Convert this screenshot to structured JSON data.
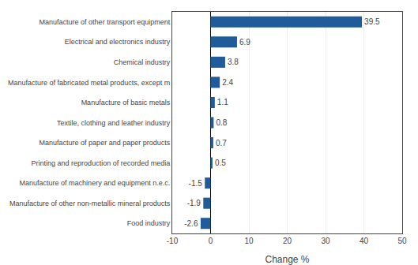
{
  "chart_data": {
    "type": "bar",
    "orientation": "horizontal",
    "categories": [
      "Manufacture of other transport equipment",
      "Electrical and electronics industry",
      "Chemical industry",
      "Manufacture of fabricated metal products, except m",
      "Manufacture of basic metals",
      "Textile, clothing and leather industry",
      "Manufacture of paper and paper products",
      "Printing and reproduction of recorded media",
      "Manufacture of machinery and equipment n.e.c.",
      "Manufacture of other non-metallic mineral products",
      "Food industry"
    ],
    "values": [
      39.5,
      6.9,
      3.8,
      2.4,
      1.1,
      0.8,
      0.7,
      0.5,
      -1.5,
      -1.9,
      -2.6
    ],
    "color": "#1F5C99",
    "xlabel": "Change %",
    "xlim": [
      -10,
      50
    ],
    "xticks": [
      -10,
      0,
      10,
      20,
      30,
      40,
      50
    ],
    "grid": true,
    "data_labels": true
  }
}
